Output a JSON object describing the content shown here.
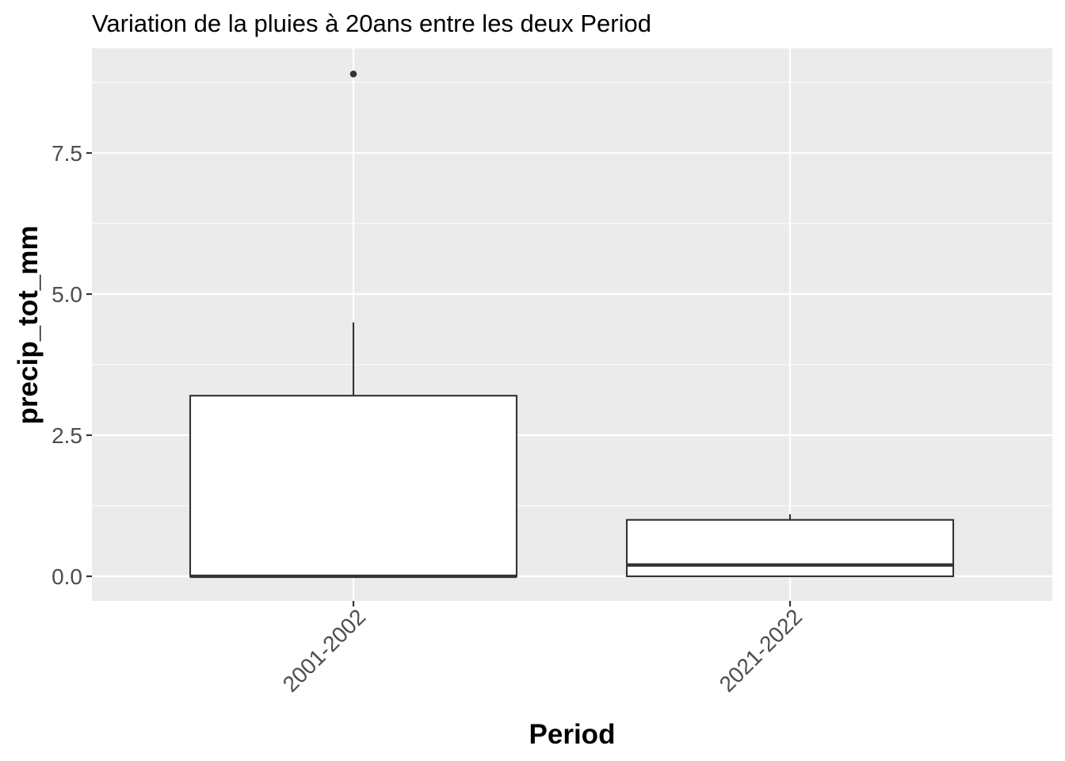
{
  "chart_data": {
    "type": "boxplot",
    "title": "Variation  de la pluies à 20ans entre les deux Period",
    "xlabel": "Period",
    "ylabel": "precip_tot_mm",
    "categories": [
      "2001-2002",
      "2021-2022"
    ],
    "ylim": [
      -0.9,
      9.4
    ],
    "yticks": [
      0.0,
      2.5,
      5.0,
      7.5
    ],
    "ytick_labels": [
      "0.0",
      "2.5",
      "5.0",
      "7.5"
    ],
    "boxes": [
      {
        "category": "2001-2002",
        "whisker_low": 0.0,
        "q1": 0.0,
        "median": 0.0,
        "q3": 3.2,
        "whisker_high": 4.5,
        "outliers": [
          8.9
        ]
      },
      {
        "category": "2021-2022",
        "whisker_low": 0.0,
        "q1": 0.0,
        "median": 0.2,
        "q3": 1.0,
        "whisker_high": 1.1,
        "outliers": []
      }
    ],
    "grid": true,
    "legend": "none",
    "colors": {
      "panel": "#ebebeb",
      "grid": "#ffffff",
      "box_fill": "#ffffff",
      "box_line": "#333333"
    }
  }
}
